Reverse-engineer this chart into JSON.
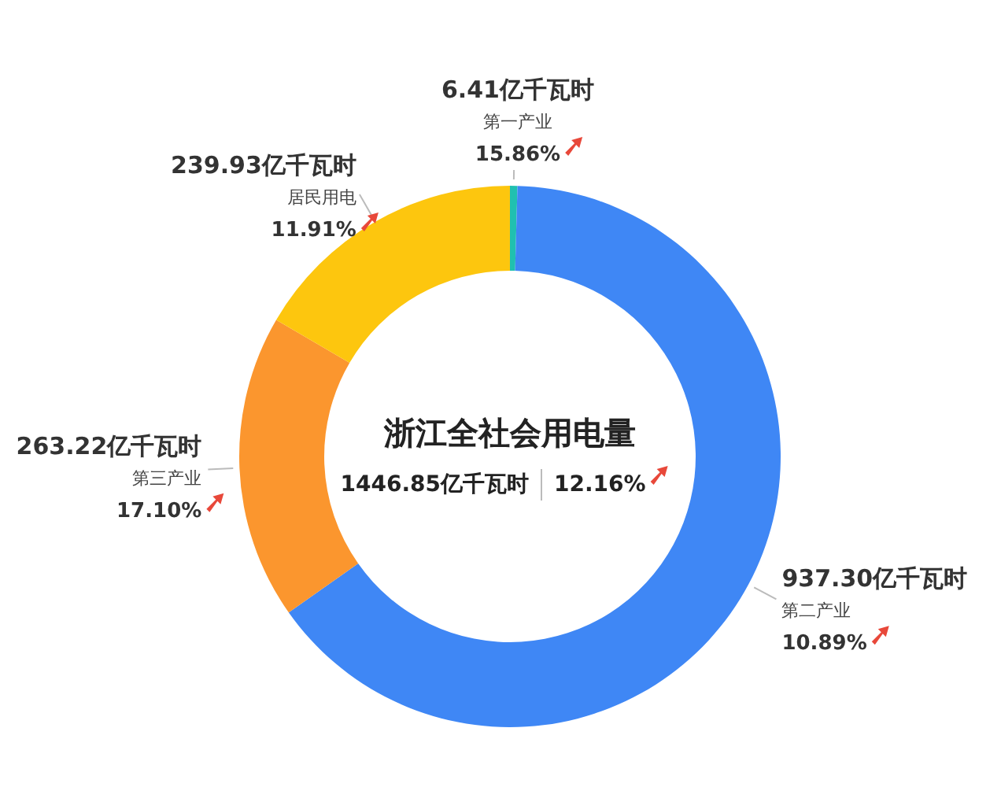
{
  "chart_data": {
    "type": "donut",
    "title": "浙江全社会用电量",
    "categories": [
      "第一产业",
      "第二产业",
      "第三产业",
      "居民用电"
    ],
    "values": [
      6.41,
      937.3,
      263.22,
      239.93
    ],
    "colors": [
      "#20c0b0",
      "#3f87f5",
      "#fb962e",
      "#fdc60e"
    ],
    "value_labels": [
      "6.41亿千瓦时",
      "937.30亿千瓦时",
      "263.22亿千瓦时",
      "239.93亿千瓦时"
    ],
    "annotations": [
      {
        "text": "15.86%",
        "x": "第一产业"
      },
      {
        "text": "10.89%",
        "x": "第二产业"
      },
      {
        "text": "17.10%",
        "x": "第三产业"
      },
      {
        "text": "11.91%",
        "x": "居民用电"
      },
      "1446.85亿千瓦时",
      "12.16%"
    ]
  }
}
